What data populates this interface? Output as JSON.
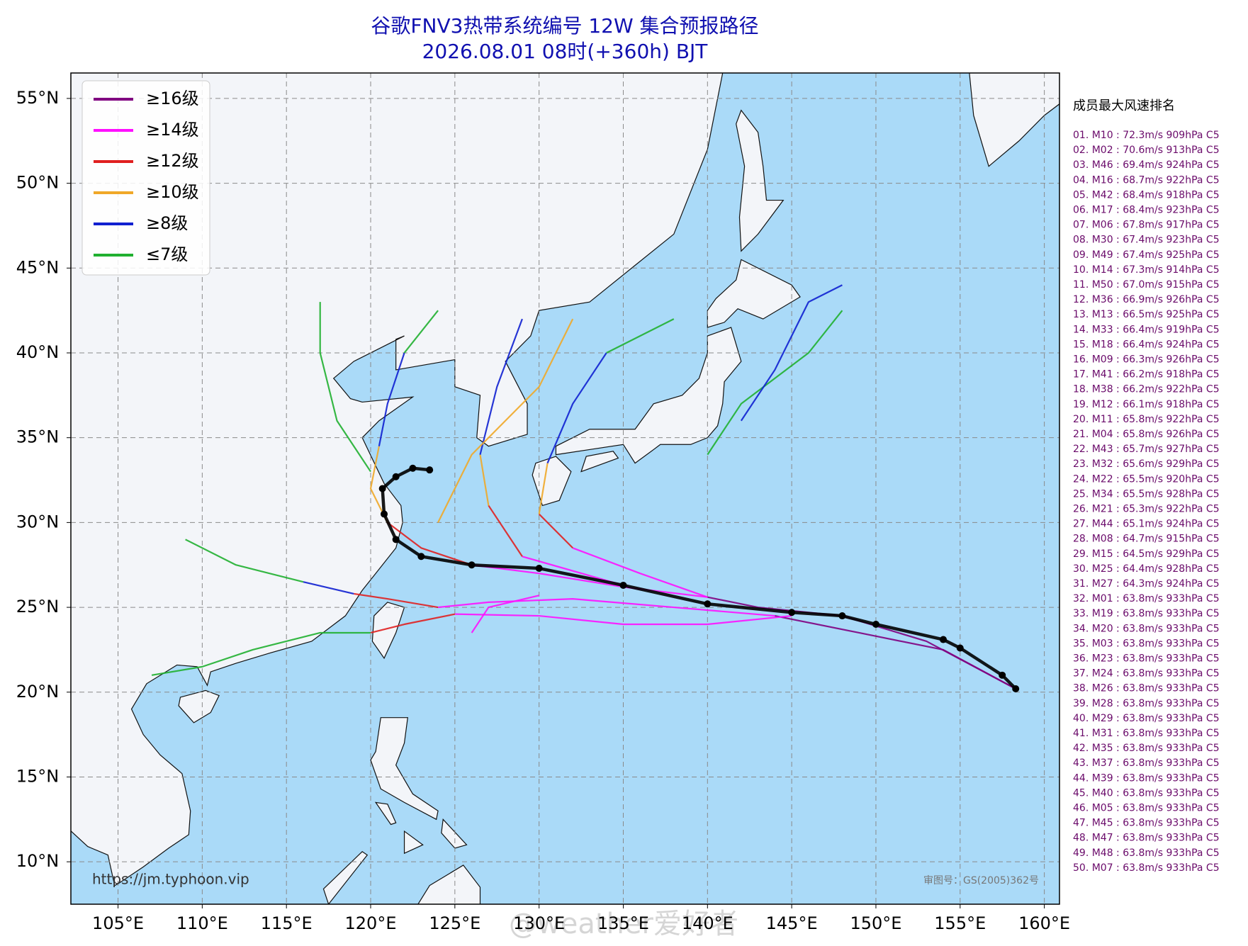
{
  "chart_data": {
    "type": "map",
    "title": "谷歌FNV3热带系统编号 12W 集合预报路径",
    "subtitle": "2026.08.01 08时(+360h) BJT",
    "xlim": [
      102.2,
      160.9
    ],
    "ylim": [
      7.5,
      56.5
    ],
    "xticks": [
      {
        "value": 105,
        "label": "105°E"
      },
      {
        "value": 110,
        "label": "110°E"
      },
      {
        "value": 115,
        "label": "115°E"
      },
      {
        "value": 120,
        "label": "120°E"
      },
      {
        "value": 125,
        "label": "125°E"
      },
      {
        "value": 130,
        "label": "130°E"
      },
      {
        "value": 135,
        "label": "135°E"
      },
      {
        "value": 140,
        "label": "140°E"
      },
      {
        "value": 145,
        "label": "145°E"
      },
      {
        "value": 150,
        "label": "150°E"
      },
      {
        "value": 155,
        "label": "155°E"
      },
      {
        "value": 160,
        "label": "160°E"
      }
    ],
    "yticks": [
      {
        "value": 10,
        "label": "10°N"
      },
      {
        "value": 15,
        "label": "15°N"
      },
      {
        "value": 20,
        "label": "20°N"
      },
      {
        "value": 25,
        "label": "25°N"
      },
      {
        "value": 30,
        "label": "30°N"
      },
      {
        "value": 35,
        "label": "35°N"
      },
      {
        "value": 40,
        "label": "40°N"
      },
      {
        "value": 45,
        "label": "45°N"
      },
      {
        "value": 50,
        "label": "50°N"
      },
      {
        "value": 55,
        "label": "55°N"
      }
    ],
    "grid": true,
    "legend": {
      "corner": "upper left",
      "items": [
        {
          "name": "≥16级",
          "color": "#800080"
        },
        {
          "name": "≥14级",
          "color": "#ff10ff"
        },
        {
          "name": "≥12级",
          "color": "#e02020"
        },
        {
          "name": "≥10级",
          "color": "#f0a828"
        },
        {
          "name": "≥8级",
          "color": "#1020d0"
        },
        {
          "name": "≤7级",
          "color": "#20b030"
        }
      ]
    },
    "mean_track": {
      "color": "#000000",
      "lon": [
        158.3,
        157.5,
        155,
        154,
        150,
        148,
        145,
        140,
        135,
        130,
        126,
        123,
        121.5,
        120.8,
        120.7,
        121.5,
        122.5,
        123.5
      ],
      "lat": [
        20.2,
        21,
        22.6,
        23.1,
        24,
        24.5,
        24.7,
        25.2,
        26.3,
        27.3,
        27.5,
        28,
        29,
        30.5,
        32,
        32.7,
        33.2,
        33.1
      ]
    },
    "tracks": [
      {
        "color": "#800080",
        "lon": [
          158.3,
          153,
          148,
          143,
          140
        ],
        "lat": [
          20.2,
          23,
          24.5,
          25,
          25.6
        ]
      },
      {
        "color": "#ff10ff",
        "lon": [
          140,
          135,
          130,
          126
        ],
        "lat": [
          25.6,
          26.2,
          27,
          27.5
        ]
      },
      {
        "color": "#e02020",
        "lon": [
          126,
          123,
          121
        ],
        "lat": [
          27.5,
          28.5,
          30
        ]
      },
      {
        "color": "#f0a828",
        "lon": [
          121,
          120,
          120.5
        ],
        "lat": [
          30,
          32,
          34.5
        ]
      },
      {
        "color": "#1020d0",
        "lon": [
          120.5,
          121,
          122
        ],
        "lat": [
          34.5,
          37,
          40
        ]
      },
      {
        "color": "#20b030",
        "lon": [
          122,
          124
        ],
        "lat": [
          40,
          42.5
        ]
      },
      {
        "color": "#800080",
        "lon": [
          158.3,
          154,
          149,
          144
        ],
        "lat": [
          20.2,
          22.5,
          23.5,
          24.5
        ]
      },
      {
        "color": "#ff10ff",
        "lon": [
          144,
          138,
          132,
          127,
          124
        ],
        "lat": [
          24.5,
          25,
          25.5,
          25.3,
          25
        ]
      },
      {
        "color": "#e02020",
        "lon": [
          124,
          121,
          119
        ],
        "lat": [
          25,
          25.5,
          25.8
        ]
      },
      {
        "color": "#1020d0",
        "lon": [
          119,
          116
        ],
        "lat": [
          25.8,
          26.5
        ]
      },
      {
        "color": "#20b030",
        "lon": [
          116,
          112,
          109
        ],
        "lat": [
          26.5,
          27.5,
          29
        ]
      },
      {
        "color": "#ff10ff",
        "lon": [
          140,
          136,
          132
        ],
        "lat": [
          25.6,
          27,
          28.5
        ]
      },
      {
        "color": "#e02020",
        "lon": [
          132,
          130
        ],
        "lat": [
          28.5,
          30.5
        ]
      },
      {
        "color": "#f0a828",
        "lon": [
          130,
          130.5
        ],
        "lat": [
          30.5,
          33.5
        ]
      },
      {
        "color": "#1020d0",
        "lon": [
          130.5,
          132,
          134
        ],
        "lat": [
          33.5,
          37,
          40
        ]
      },
      {
        "color": "#20b030",
        "lon": [
          134,
          138
        ],
        "lat": [
          40,
          42
        ]
      },
      {
        "color": "#ff10ff",
        "lon": [
          135,
          129
        ],
        "lat": [
          26.3,
          28
        ]
      },
      {
        "color": "#e02020",
        "lon": [
          129,
          127
        ],
        "lat": [
          28,
          31
        ]
      },
      {
        "color": "#f0a828",
        "lon": [
          127,
          126.5
        ],
        "lat": [
          31,
          34
        ]
      },
      {
        "color": "#1020d0",
        "lon": [
          126.5,
          127.5,
          129
        ],
        "lat": [
          34,
          38,
          42
        ]
      },
      {
        "color": "#ff10ff",
        "lon": [
          145,
          140,
          135,
          130,
          125
        ],
        "lat": [
          24.5,
          24,
          24,
          24.5,
          24.6
        ]
      },
      {
        "color": "#e02020",
        "lon": [
          125,
          122,
          120
        ],
        "lat": [
          24.6,
          24,
          23.5
        ]
      },
      {
        "color": "#20b030",
        "lon": [
          120,
          117,
          113,
          110,
          107
        ],
        "lat": [
          23.5,
          23.5,
          22.5,
          21.5,
          21
        ]
      },
      {
        "color": "#ff10ff",
        "lon": [
          130,
          127,
          126
        ],
        "lat": [
          25.7,
          25,
          23.5
        ]
      },
      {
        "color": "#20b030",
        "lon": [
          120,
          118,
          117,
          117
        ],
        "lat": [
          33,
          36,
          40,
          43
        ]
      },
      {
        "color": "#f0a828",
        "lon": [
          124,
          126,
          130,
          132
        ],
        "lat": [
          30,
          34,
          38,
          42
        ]
      },
      {
        "color": "#20b030",
        "lon": [
          140,
          142,
          146,
          148
        ],
        "lat": [
          34,
          37,
          40,
          42.5
        ]
      },
      {
        "color": "#1020d0",
        "lon": [
          142,
          144,
          146,
          148
        ],
        "lat": [
          36,
          39,
          43,
          44
        ]
      }
    ],
    "ranking": {
      "title": "成员最大风速排名",
      "items": [
        "01. M10 : 72.3m/s 909hPa C5",
        "02. M02 : 70.6m/s 913hPa C5",
        "03. M46 : 69.4m/s 924hPa C5",
        "04. M16 : 68.7m/s 922hPa C5",
        "05. M42 : 68.4m/s 918hPa C5",
        "06. M17 : 68.4m/s 923hPa C5",
        "07. M06 : 67.8m/s 917hPa C5",
        "08. M30 : 67.4m/s 923hPa C5",
        "09. M49 : 67.4m/s 925hPa C5",
        "10. M14 : 67.3m/s 914hPa C5",
        "11. M50 : 67.0m/s 915hPa C5",
        "12. M36 : 66.9m/s 926hPa C5",
        "13. M13 : 66.5m/s 925hPa C5",
        "14. M33 : 66.4m/s 919hPa C5",
        "15. M18 : 66.4m/s 924hPa C5",
        "16. M09 : 66.3m/s 926hPa C5",
        "17. M41 : 66.2m/s 918hPa C5",
        "18. M38 : 66.2m/s 922hPa C5",
        "19. M12 : 66.1m/s 918hPa C5",
        "20. M11 : 65.8m/s 922hPa C5",
        "21. M04 : 65.8m/s 926hPa C5",
        "22. M43 : 65.7m/s 927hPa C5",
        "23. M32 : 65.6m/s 929hPa C5",
        "24. M22 : 65.5m/s 920hPa C5",
        "25. M34 : 65.5m/s 928hPa C5",
        "26. M21 : 65.3m/s 922hPa C5",
        "27. M44 : 65.1m/s 924hPa C5",
        "28. M08 : 64.7m/s 915hPa C5",
        "29. M15 : 64.5m/s 929hPa C5",
        "30. M25 : 64.4m/s 928hPa C5",
        "31. M27 : 64.3m/s 924hPa C5",
        "32. M01 : 63.8m/s 933hPa C5",
        "33. M19 : 63.8m/s 933hPa C5",
        "34. M20 : 63.8m/s 933hPa C5",
        "35. M03 : 63.8m/s 933hPa C5",
        "36. M23 : 63.8m/s 933hPa C5",
        "37. M24 : 63.8m/s 933hPa C5",
        "38. M26 : 63.8m/s 933hPa C5",
        "39. M28 : 63.8m/s 933hPa C5",
        "40. M29 : 63.8m/s 933hPa C5",
        "41. M31 : 63.8m/s 933hPa C5",
        "42. M35 : 63.8m/s 933hPa C5",
        "43. M37 : 63.8m/s 933hPa C5",
        "44. M39 : 63.8m/s 933hPa C5",
        "45. M40 : 63.8m/s 933hPa C5",
        "46. M05 : 63.8m/s 933hPa C5",
        "47. M45 : 63.8m/s 933hPa C5",
        "48. M47 : 63.8m/s 933hPa C5",
        "49. M48 : 63.8m/s 933hPa C5",
        "50. M07 : 63.8m/s 933hPa C5"
      ]
    },
    "source": "https://jm.typhoon.vip",
    "approval": "审图号：GS(2005)362号",
    "watermark": "@weather爱好者"
  }
}
